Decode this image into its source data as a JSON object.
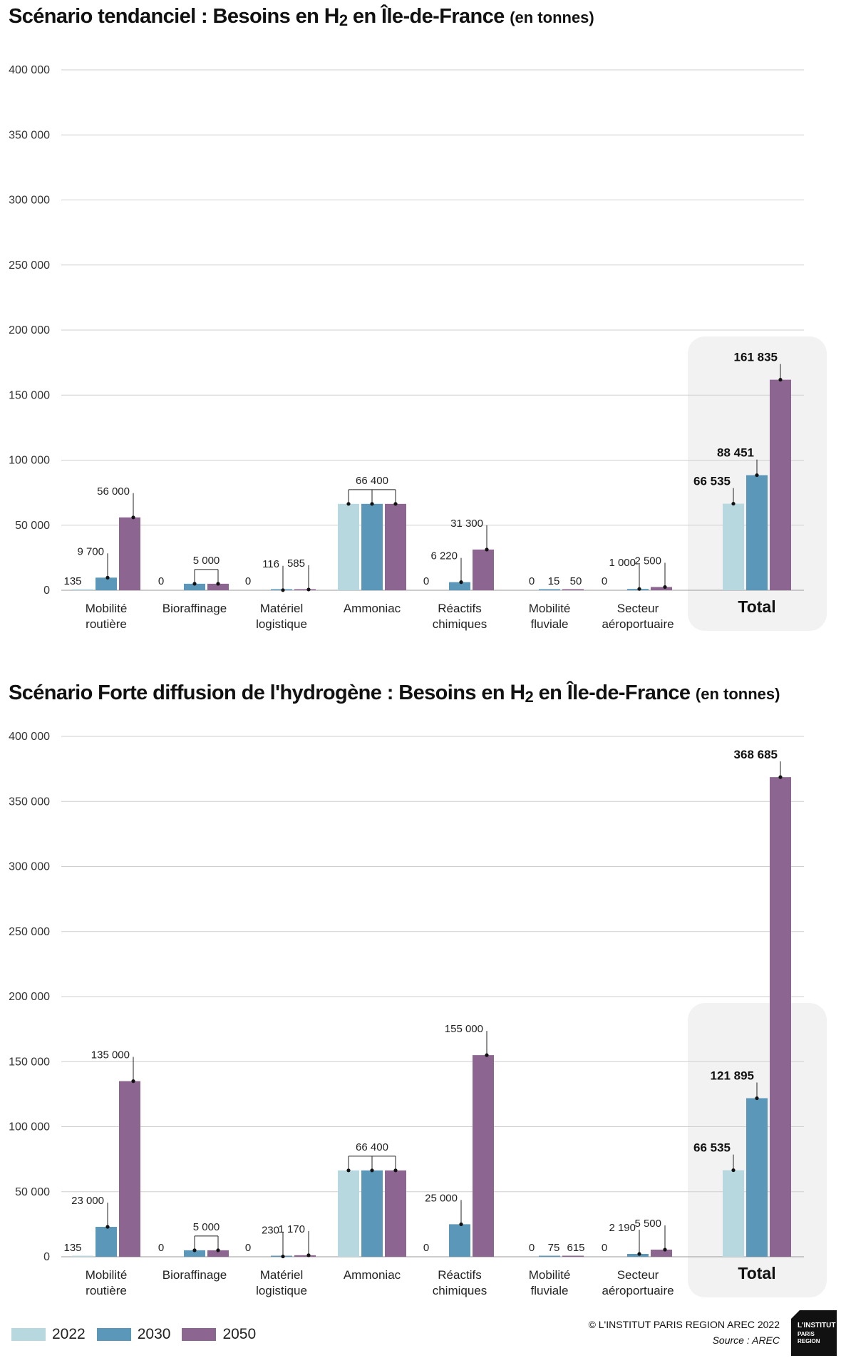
{
  "colors": {
    "y2022": "#b8d8df",
    "y2030": "#5a97b8",
    "y2050": "#8c6690",
    "total_bg": "#f2f2f2",
    "grid": "#cfcfcf"
  },
  "legend": [
    "2022",
    "2030",
    "2050"
  ],
  "credit": "© L'INSTITUT PARIS REGION AREC 2022",
  "source": "Source : AREC",
  "logo": {
    "icon": "institut-paris-region-logo",
    "line1": "L'INSTITUT",
    "line2": "PARIS",
    "line3": "REGION"
  },
  "chart_data": [
    {
      "type": "bar",
      "title": "Scénario tendanciel : Besoins en H2 en Île-de-France",
      "title_parts": {
        "pre": "Scénario tendanciel : Besoins en ",
        "h": "H",
        "sub": "2",
        "post": " en Île-de-France",
        "unit": "(en tonnes)"
      },
      "ylim": [
        0,
        400000
      ],
      "yticks": [
        "0",
        "50 000",
        "100 000",
        "150 000",
        "200 000",
        "250 000",
        "300 000",
        "350 000",
        "400 000"
      ],
      "categories": [
        [
          "Mobilité",
          "routière"
        ],
        [
          "Bioraffinage"
        ],
        [
          "Matériel",
          "logistique"
        ],
        [
          "Ammoniac"
        ],
        [
          "Réactifs",
          "chimiques"
        ],
        [
          "Mobilité",
          "fluviale"
        ],
        [
          "Secteur",
          "aéroportuaire"
        ]
      ],
      "total_label": "Total",
      "series": [
        {
          "name": "2022",
          "values": [
            135,
            0,
            0,
            66400,
            0,
            0,
            0
          ]
        },
        {
          "name": "2030",
          "values": [
            9700,
            5000,
            116,
            66400,
            6220,
            15,
            1000
          ]
        },
        {
          "name": "2050",
          "values": [
            56000,
            5000,
            585,
            66400,
            31300,
            50,
            2500
          ]
        }
      ],
      "totals": [
        66535,
        88451,
        161835
      ],
      "data_labels": [
        [
          [
            "135",
            null
          ],
          [
            "9 700",
            "a"
          ],
          [
            "56 000",
            "a"
          ]
        ],
        [
          [
            "0",
            null
          ],
          [
            "5 000",
            "g"
          ],
          [
            null,
            "g"
          ]
        ],
        [
          [
            "0",
            null
          ],
          [
            "116",
            "a"
          ],
          [
            "585",
            "a"
          ]
        ],
        [
          [
            null,
            "g"
          ],
          [
            "66 400",
            "g"
          ],
          [
            null,
            "g"
          ]
        ],
        [
          [
            "0",
            null
          ],
          [
            "6 220",
            "a"
          ],
          [
            "31 300",
            "a"
          ]
        ],
        [
          [
            "0",
            null
          ],
          [
            "15",
            null
          ],
          [
            "50",
            null
          ]
        ],
        [
          [
            "0",
            null
          ],
          [
            "1 000",
            "a"
          ],
          [
            "2 500",
            "a"
          ]
        ]
      ],
      "total_labels": [
        "66 535",
        "88 451",
        "161 835"
      ]
    },
    {
      "type": "bar",
      "title": "Scénario Forte diffusion de l'hydrogène : Besoins en H2 en Île-de-France",
      "title_parts": {
        "pre": "Scénario Forte diffusion de l'hydrogène : Besoins en ",
        "h": "H",
        "sub": "2",
        "post": " en Île-de-France",
        "unit": "(en tonnes)"
      },
      "ylim": [
        0,
        400000
      ],
      "yticks": [
        "0",
        "50 000",
        "100 000",
        "150 000",
        "200 000",
        "250 000",
        "300 000",
        "350 000",
        "400 000"
      ],
      "categories": [
        [
          "Mobilité",
          "routière"
        ],
        [
          "Bioraffinage"
        ],
        [
          "Matériel",
          "logistique"
        ],
        [
          "Ammoniac"
        ],
        [
          "Réactifs",
          "chimiques"
        ],
        [
          "Mobilité",
          "fluviale"
        ],
        [
          "Secteur",
          "aéroportuaire"
        ]
      ],
      "total_label": "Total",
      "series": [
        {
          "name": "2022",
          "values": [
            135,
            0,
            0,
            66400,
            0,
            0,
            0
          ]
        },
        {
          "name": "2030",
          "values": [
            23000,
            5000,
            230,
            66400,
            25000,
            75,
            2190
          ]
        },
        {
          "name": "2050",
          "values": [
            135000,
            5000,
            1170,
            66400,
            155000,
            615,
            5500
          ]
        }
      ],
      "totals": [
        66535,
        121895,
        368685
      ],
      "data_labels": [
        [
          [
            "135",
            null
          ],
          [
            "23 000",
            "a"
          ],
          [
            "135 000",
            "a"
          ]
        ],
        [
          [
            "0",
            null
          ],
          [
            "5 000",
            "g"
          ],
          [
            null,
            "g"
          ]
        ],
        [
          [
            "0",
            null
          ],
          [
            "230",
            "a"
          ],
          [
            "1 170",
            "a"
          ]
        ],
        [
          [
            null,
            "g"
          ],
          [
            "66 400",
            "g"
          ],
          [
            null,
            "g"
          ]
        ],
        [
          [
            "0",
            null
          ],
          [
            "25 000",
            "a"
          ],
          [
            "155 000",
            "a"
          ]
        ],
        [
          [
            "0",
            null
          ],
          [
            "75",
            null
          ],
          [
            "615",
            null
          ]
        ],
        [
          [
            "0",
            null
          ],
          [
            "2 190",
            "a"
          ],
          [
            "5 500",
            "a"
          ]
        ]
      ],
      "total_labels": [
        "66 535",
        "121 895",
        "368 685"
      ]
    }
  ]
}
